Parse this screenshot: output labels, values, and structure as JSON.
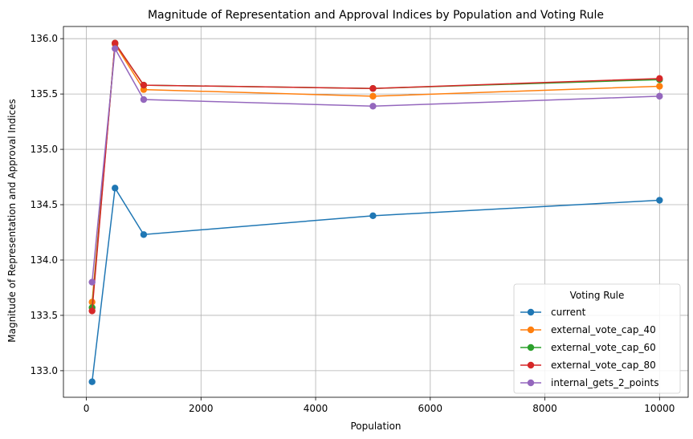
{
  "chart_data": {
    "type": "line",
    "title": "Magnitude of Representation and Approval Indices by Population and Voting Rule",
    "xlabel": "Population",
    "ylabel": "Magnitude of Representation and Approval Indices",
    "x": [
      100,
      500,
      1000,
      5000,
      10000
    ],
    "xlim": [
      -400,
      10500
    ],
    "ylim": [
      132.76,
      136.11
    ],
    "xticks": [
      0,
      2000,
      4000,
      6000,
      8000,
      10000
    ],
    "yticks": [
      133.0,
      133.5,
      134.0,
      134.5,
      135.0,
      135.5,
      136.0
    ],
    "xtick_labels": [
      "0",
      "2000",
      "4000",
      "6000",
      "8000",
      "10000"
    ],
    "ytick_labels": [
      "133.0",
      "133.5",
      "134.0",
      "134.5",
      "135.0",
      "135.5",
      "136.0"
    ],
    "grid": true,
    "legend": {
      "title": "Voting Rule",
      "placement": "lower-right"
    },
    "series": [
      {
        "name": "current",
        "color": "#1f77b4",
        "values": [
          132.9,
          134.65,
          134.23,
          134.4,
          134.54
        ]
      },
      {
        "name": "external_vote_cap_40",
        "color": "#ff7f0e",
        "values": [
          133.62,
          135.95,
          135.54,
          135.48,
          135.57
        ]
      },
      {
        "name": "external_vote_cap_60",
        "color": "#2ca02c",
        "values": [
          133.57,
          135.96,
          135.58,
          135.55,
          135.63
        ]
      },
      {
        "name": "external_vote_cap_80",
        "color": "#d62728",
        "values": [
          133.54,
          135.96,
          135.58,
          135.55,
          135.64
        ]
      },
      {
        "name": "internal_gets_2_points",
        "color": "#9467bd",
        "values": [
          133.8,
          135.91,
          135.45,
          135.39,
          135.48
        ]
      }
    ]
  }
}
